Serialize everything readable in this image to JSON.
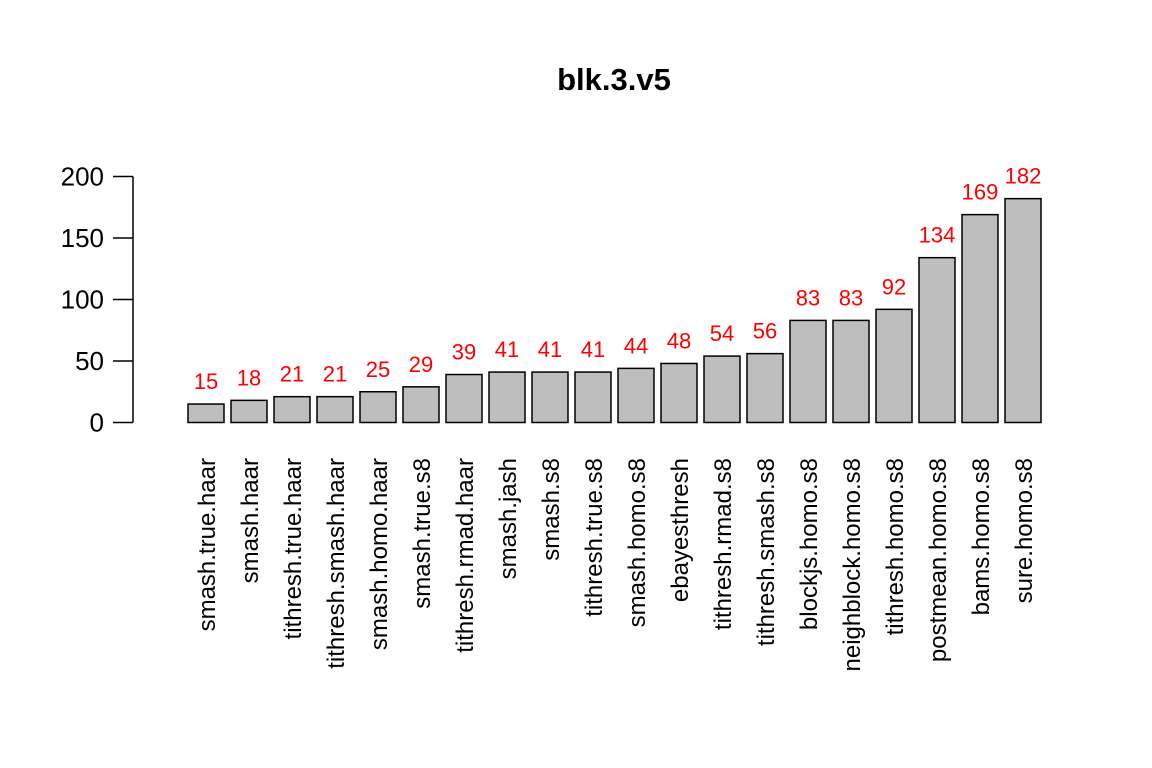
{
  "chart_data": {
    "type": "bar",
    "title": "blk.3.v5",
    "xlabel": "",
    "ylabel": "",
    "categories": [
      "smash.true.haar",
      "smash.haar",
      "tithresh.true.haar",
      "tithresh.smash.haar",
      "smash.homo.haar",
      "smash.true.s8",
      "tithresh.rmad.haar",
      "smash.jash",
      "smash.s8",
      "tithresh.true.s8",
      "smash.homo.s8",
      "ebayesthresh",
      "tithresh.rmad.s8",
      "tithresh.smash.s8",
      "blockjs.homo.s8",
      "neighblock.homo.s8",
      "tithresh.homo.s8",
      "postmean.homo.s8",
      "bams.homo.s8",
      "sure.homo.s8"
    ],
    "values": [
      15,
      18,
      21,
      21,
      25,
      29,
      39,
      41,
      41,
      41,
      44,
      48,
      54,
      56,
      83,
      83,
      92,
      134,
      169,
      182
    ],
    "data_labels": [
      "15",
      "18",
      "21",
      "21",
      "25",
      "29",
      "39",
      "41",
      "41",
      "41",
      "44",
      "48",
      "54",
      "56",
      "83",
      "83",
      "92",
      "134",
      "169",
      "182"
    ],
    "ylim": [
      0,
      200
    ],
    "yticks": [
      0,
      50,
      100,
      150,
      200
    ],
    "ytick_labels": [
      "0",
      "50",
      "100",
      "150",
      "200"
    ],
    "grid": false,
    "legend": "none",
    "bar_color": "#bebebe",
    "bar_edge_color": "#000000",
    "data_label_color": "#ff0000"
  }
}
